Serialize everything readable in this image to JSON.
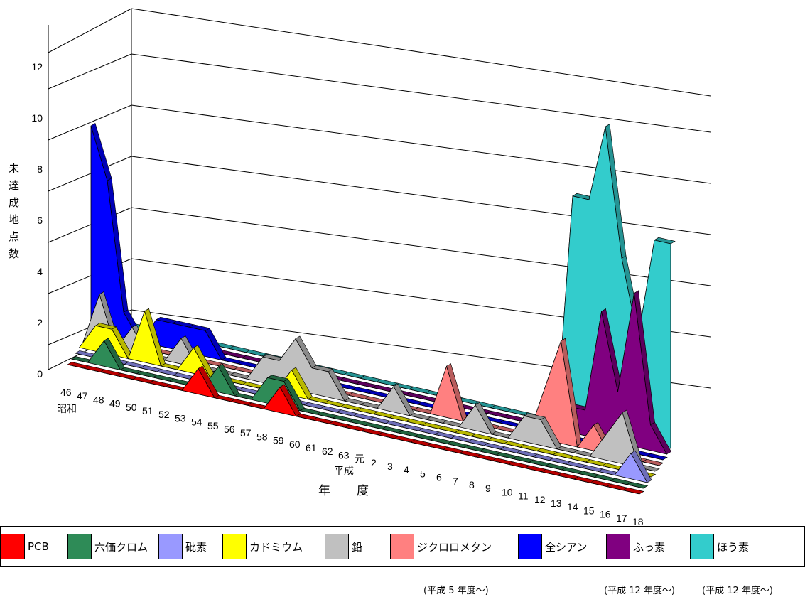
{
  "chart_data": {
    "type": "area",
    "ylabel": "未達成地点数",
    "xlabel": "年　度",
    "era_labels": {
      "showa": "昭和",
      "heisei": "平成"
    },
    "y_ticks": [
      "0",
      "2",
      "4",
      "6",
      "8",
      "10",
      "12"
    ],
    "ylim": [
      0,
      12
    ],
    "categories": [
      "46",
      "47",
      "48",
      "49",
      "50",
      "51",
      "52",
      "53",
      "54",
      "55",
      "56",
      "57",
      "58",
      "59",
      "60",
      "61",
      "62",
      "63",
      "元",
      "2",
      "3",
      "4",
      "5",
      "6",
      "7",
      "8",
      "9",
      "10",
      "11",
      "12",
      "13",
      "14",
      "15",
      "16",
      "17",
      "18"
    ],
    "series": [
      {
        "name": "PCB",
        "color": "#ff0000",
        "values": [
          0,
          0,
          0,
          0,
          0,
          0,
          0,
          0,
          1,
          0,
          0,
          0,
          0,
          1,
          0,
          0,
          0,
          0,
          0,
          0,
          0,
          0,
          0,
          0,
          0,
          0,
          0,
          0,
          0,
          0,
          0,
          0,
          0,
          0,
          0,
          0
        ]
      },
      {
        "name": "六価クロム",
        "color": "#2e8b57",
        "values": [
          0,
          0,
          1,
          0,
          0,
          0,
          0,
          0,
          0,
          1,
          0,
          0,
          1,
          1,
          0,
          0,
          0,
          0,
          0,
          0,
          0,
          0,
          0,
          0,
          0,
          0,
          0,
          0,
          0,
          0,
          0,
          0,
          0,
          0,
          0,
          0
        ]
      },
      {
        "name": "砒素",
        "color": "#9999ff",
        "values": [
          0,
          0,
          0,
          0,
          0,
          0,
          0,
          0,
          0,
          0,
          0,
          0,
          0,
          0,
          0,
          0,
          0,
          0,
          0,
          0,
          0,
          0,
          0,
          0,
          0,
          0,
          0,
          0,
          0,
          0,
          0,
          0,
          0,
          0,
          1,
          0
        ]
      },
      {
        "name": "カドミウム",
        "color": "#ffff00",
        "values": [
          0,
          1,
          1,
          0,
          2,
          0,
          0,
          1,
          0,
          0,
          0,
          0,
          0,
          1,
          0,
          0,
          0,
          0,
          0,
          0,
          0,
          0,
          0,
          0,
          0,
          0,
          0,
          0,
          0,
          0,
          0,
          0,
          0,
          0,
          0,
          0
        ]
      },
      {
        "name": "鉛",
        "color": "#c0c0c0",
        "values": [
          0,
          2,
          0,
          1,
          0,
          0,
          1,
          0,
          0,
          0,
          0,
          1,
          1,
          2,
          1,
          1,
          0,
          0,
          0,
          1,
          0,
          0,
          0,
          0,
          1,
          0,
          0,
          1,
          1,
          0,
          0,
          0,
          1,
          2,
          0,
          0
        ]
      },
      {
        "name": "ジクロロメタン",
        "color": "#ff8080",
        "values": [
          0,
          0,
          0,
          0,
          0,
          0,
          0,
          0,
          0,
          0,
          0,
          0,
          0,
          0,
          0,
          0,
          0,
          0,
          0,
          0,
          0,
          0,
          2,
          0,
          0,
          0,
          0,
          0,
          2,
          4,
          0,
          1,
          0,
          0,
          0,
          0
        ]
      },
      {
        "name": "全シアン",
        "color": "#0000ff",
        "values": [
          8,
          6,
          1,
          0,
          1,
          1,
          1,
          1,
          0,
          0,
          0,
          0,
          0,
          0,
          0,
          0,
          0,
          0,
          0,
          0,
          0,
          0,
          0,
          0,
          0,
          0,
          0,
          0,
          0,
          0,
          0,
          0,
          0,
          0,
          0,
          0
        ]
      },
      {
        "name": "ふっ素",
        "color": "#800080",
        "values": [
          0,
          0,
          0,
          0,
          0,
          0,
          0,
          0,
          0,
          0,
          0,
          0,
          0,
          0,
          0,
          0,
          0,
          0,
          0,
          0,
          0,
          0,
          0,
          0,
          0,
          0,
          0,
          0,
          0,
          1,
          1,
          5,
          2,
          6,
          1,
          0
        ]
      },
      {
        "name": "ほう素",
        "color": "#33cccc",
        "values": [
          0,
          0,
          0,
          0,
          0,
          0,
          0,
          0,
          0,
          0,
          0,
          0,
          0,
          0,
          0,
          0,
          0,
          0,
          0,
          0,
          0,
          0,
          0,
          0,
          0,
          0,
          0,
          0,
          0,
          9,
          9,
          12,
          7,
          4,
          8,
          8
        ]
      }
    ],
    "notes": [
      {
        "text": "(平成 5 年度～)"
      },
      {
        "text": "(平成 12 年度～)"
      },
      {
        "text": "(平成 12 年度～)"
      }
    ],
    "legend_position": "bottom"
  }
}
